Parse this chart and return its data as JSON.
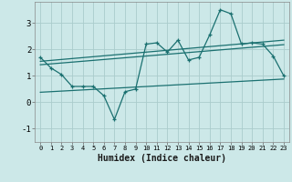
{
  "xlabel": "Humidex (Indice chaleur)",
  "xlim": [
    -0.5,
    23.5
  ],
  "ylim": [
    -1.5,
    3.8
  ],
  "yticks": [
    -1,
    0,
    1,
    2,
    3
  ],
  "xticks": [
    0,
    1,
    2,
    3,
    4,
    5,
    6,
    7,
    8,
    9,
    10,
    11,
    12,
    13,
    14,
    15,
    16,
    17,
    18,
    19,
    20,
    21,
    22,
    23
  ],
  "bg_color": "#cce8e8",
  "grid_color": "#aacccc",
  "line_color": "#1a7070",
  "line1_x": [
    0,
    1,
    2,
    3,
    4,
    5,
    6,
    7,
    8,
    9,
    10,
    11,
    12,
    13,
    14,
    15,
    16,
    17,
    18,
    19,
    20,
    21,
    22,
    23
  ],
  "line1_y": [
    1.7,
    1.3,
    1.05,
    0.6,
    0.6,
    0.6,
    0.25,
    -0.65,
    0.4,
    0.5,
    2.2,
    2.25,
    1.9,
    2.35,
    1.6,
    1.7,
    2.55,
    3.5,
    3.35,
    2.2,
    2.25,
    2.2,
    1.75,
    1.0
  ],
  "line2_x": [
    0,
    23
  ],
  "line2_y": [
    1.55,
    2.35
  ],
  "line3_x": [
    0,
    23
  ],
  "line3_y": [
    1.42,
    2.18
  ],
  "line4_x": [
    0,
    23
  ],
  "line4_y": [
    0.38,
    0.88
  ]
}
